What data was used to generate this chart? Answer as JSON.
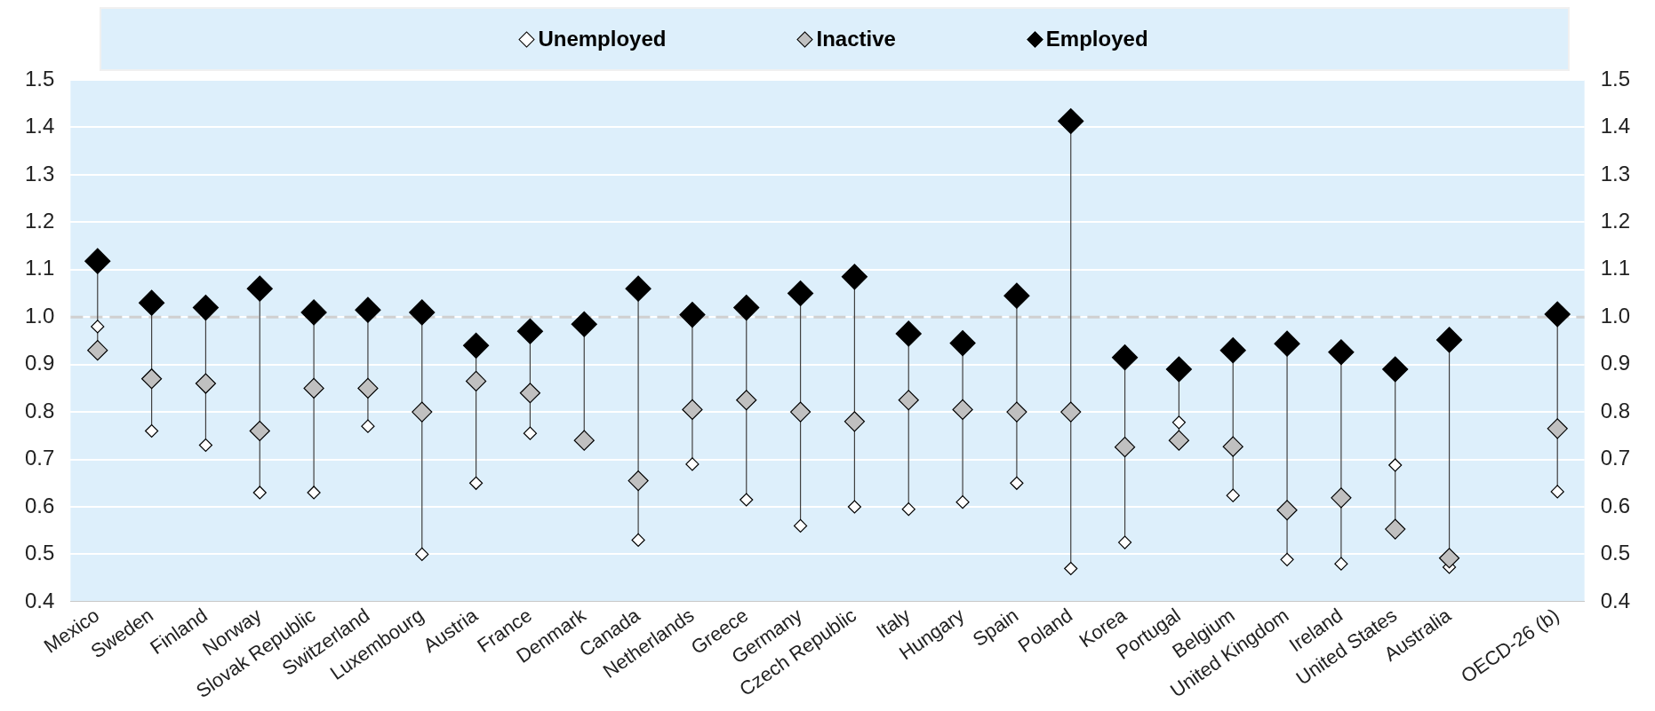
{
  "chart_data": {
    "type": "scatter",
    "categories": [
      "Mexico",
      "Sweden",
      "Finland",
      "Norway",
      "Slovak Republic",
      "Switzerland",
      "Luxembourg",
      "Austria",
      "France",
      "Denmark",
      "Canada",
      "Netherlands",
      "Greece",
      "Germany",
      "Czech Republic",
      "Italy",
      "Hungary",
      "Spain",
      "Poland",
      "Korea",
      "Portugal",
      "Belgium",
      "United Kingdom",
      "Ireland",
      "United States",
      "Australia",
      null,
      "OECD-26 (b)"
    ],
    "series": [
      {
        "name": "Unemployed",
        "color": "#ffffff",
        "values": [
          0.98,
          0.76,
          0.73,
          0.63,
          0.63,
          0.77,
          0.5,
          0.65,
          0.755,
          null,
          0.53,
          0.69,
          0.615,
          0.56,
          0.6,
          0.595,
          0.61,
          0.65,
          0.47,
          0.525,
          0.778,
          0.624,
          0.489,
          0.48,
          0.688,
          0.473,
          null,
          0.632
        ]
      },
      {
        "name": "Inactive",
        "color": "#c0c0c0",
        "values": [
          0.93,
          0.87,
          0.86,
          0.76,
          0.85,
          0.85,
          0.8,
          0.865,
          0.84,
          0.74,
          0.655,
          0.805,
          0.825,
          0.8,
          0.78,
          0.825,
          0.805,
          0.8,
          0.8,
          0.726,
          0.74,
          0.727,
          0.593,
          0.619,
          0.553,
          0.492,
          null,
          0.765
        ]
      },
      {
        "name": "Employed",
        "color": "#000000",
        "values": [
          1.118,
          1.03,
          1.02,
          1.06,
          1.01,
          1.015,
          1.01,
          0.94,
          0.97,
          0.985,
          1.06,
          1.005,
          1.02,
          1.05,
          1.085,
          0.965,
          0.945,
          1.045,
          1.413,
          0.915,
          0.89,
          0.93,
          0.944,
          0.926,
          0.89,
          0.952,
          null,
          1.006
        ]
      }
    ],
    "ylim": [
      0.4,
      1.5
    ],
    "yticks": [
      0.4,
      0.5,
      0.6,
      0.7,
      0.8,
      0.9,
      {
        "value": 1,
        "label": "1.0"
      },
      1.1,
      1.2,
      1.3,
      1.4,
      1.5
    ],
    "y2lim": [
      0.4,
      1.5
    ],
    "y2ticks": [
      0.4,
      0.5,
      0.6,
      0.7,
      0.8,
      0.9,
      {
        "value": 1,
        "label": "1.0"
      },
      1.1,
      1.2,
      1.3,
      1.4,
      1.5
    ],
    "ref_lines": [
      {
        "axis": "y",
        "value": 1.0,
        "color": "#d0d0d0",
        "line_style": "dashed"
      }
    ],
    "grid": "y",
    "legend": "top",
    "marker": "diamond"
  }
}
